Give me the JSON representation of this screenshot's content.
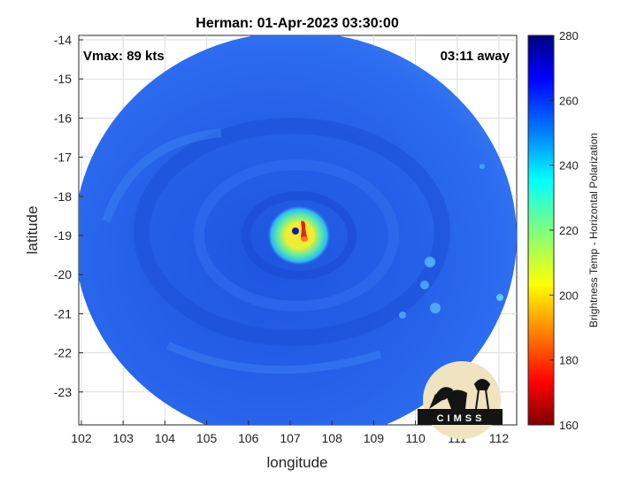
{
  "title": "Herman: 01-Apr-2023 03:30:00",
  "vmax_label": "Vmax: 89 kts",
  "time_away_label": "03:11 away",
  "xlabel": "longitude",
  "ylabel": "latitude",
  "x_ticks": [
    "102",
    "103",
    "104",
    "105",
    "106",
    "107",
    "108",
    "109",
    "110",
    "111",
    "112"
  ],
  "y_ticks": [
    "-14",
    "-15",
    "-16",
    "-17",
    "-18",
    "-19",
    "-20",
    "-21",
    "-22",
    "-23"
  ],
  "colorbar": {
    "label": "Brightness Temp - Horizontal Polarization",
    "ticks": [
      "280",
      "260",
      "240",
      "220",
      "200",
      "180",
      "160"
    ],
    "range": [
      160,
      280
    ],
    "colormap": "jet-reversed"
  },
  "logo": {
    "text": "CIMSS"
  },
  "colors": {
    "swath_background": "#2a64ea",
    "eye_wall_warm": "#f6e61c",
    "eye_core_hot": "#d91a10"
  }
}
